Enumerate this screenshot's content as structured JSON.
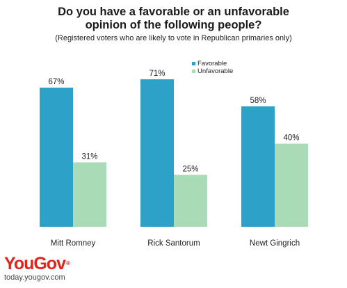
{
  "chart_data": {
    "type": "bar",
    "title": "Do you have a favorable or an unfavorable opinion of the following people?",
    "subtitle": "(Registered voters who are likely to vote in Republican primaries only)",
    "categories": [
      "Mitt Romney",
      "Rick Santorum",
      "Newt Gingrich"
    ],
    "series": [
      {
        "name": "Favorable",
        "values": [
          67,
          71,
          58
        ],
        "labels": [
          "67%",
          "71%",
          "58%"
        ],
        "color": "#2ea1c8"
      },
      {
        "name": "Unfavorable",
        "values": [
          31,
          25,
          40
        ],
        "labels": [
          "31%",
          "25%",
          "40%"
        ],
        "color": "#a8dbb6"
      }
    ],
    "ylim": [
      0,
      71
    ],
    "grid": false,
    "legend_position": "top-right"
  },
  "branding": {
    "logo_text": "YouGov",
    "logo_mark": "®",
    "url": "today.yougov.com",
    "color": "#e0261c"
  }
}
